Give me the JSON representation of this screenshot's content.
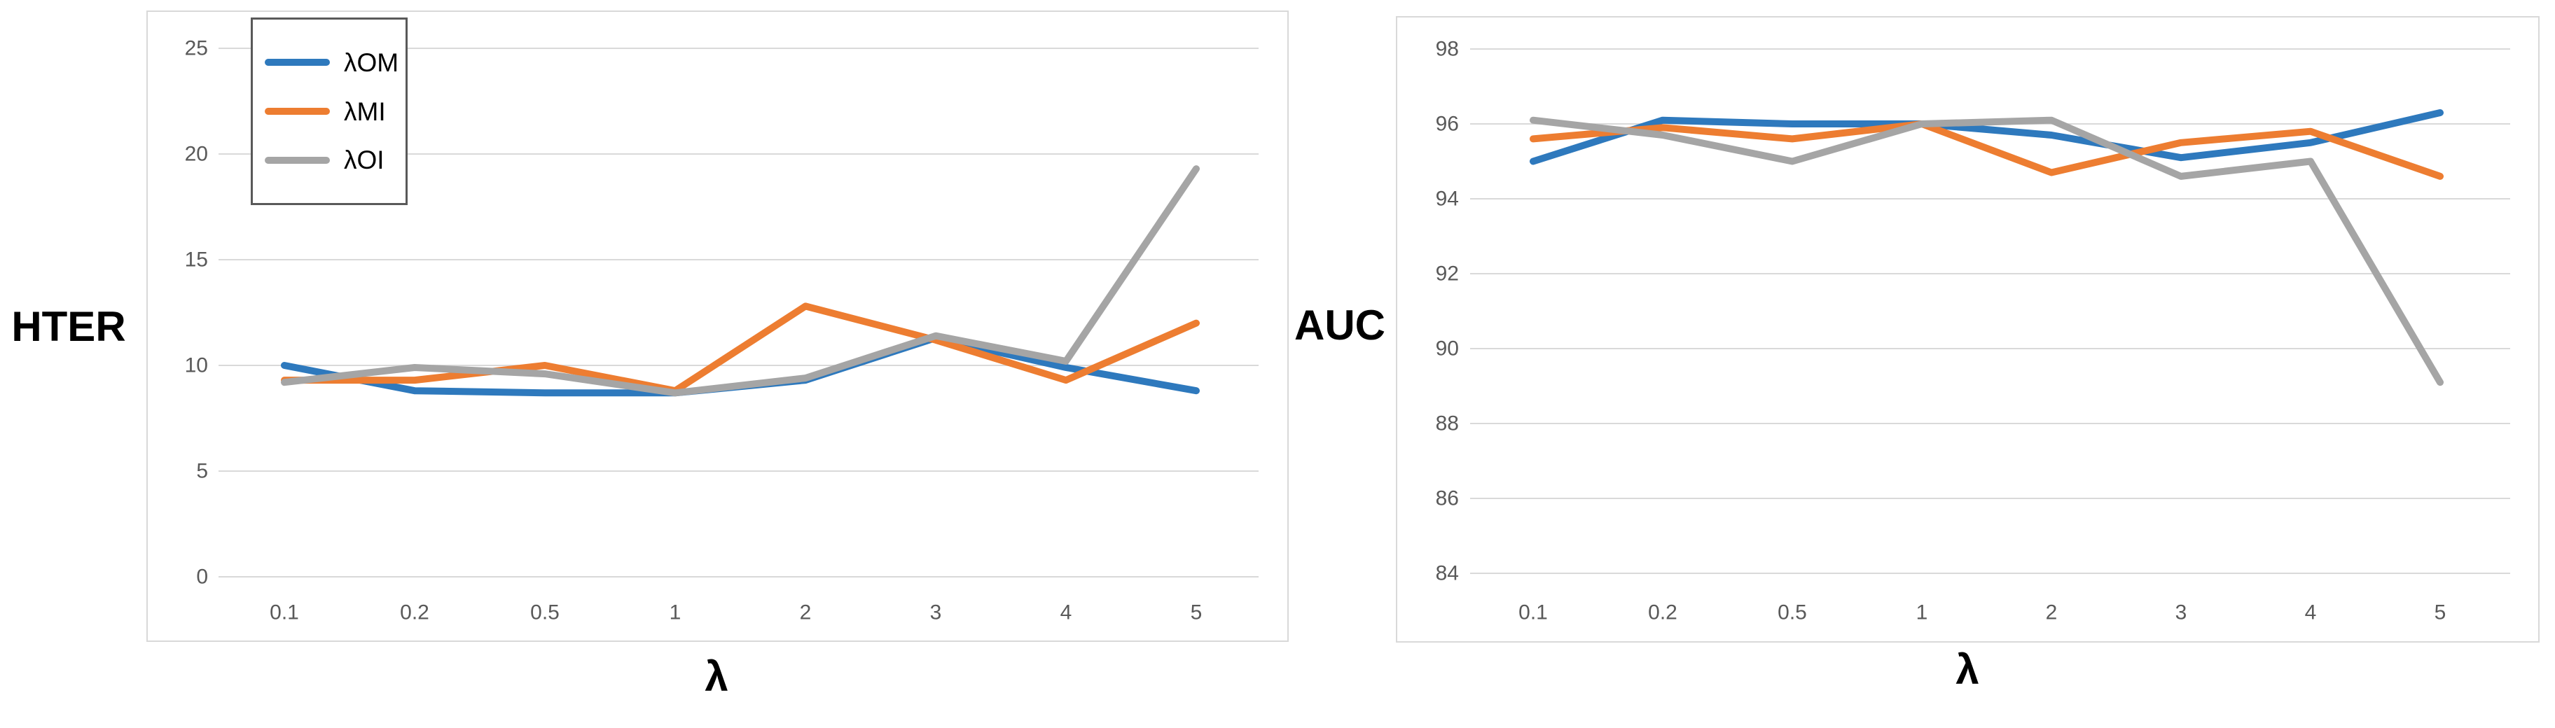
{
  "ui": {
    "background": "#ffffff",
    "grid_color": "#d9d9d9",
    "chart_border_color": "#d9d9d9",
    "tick_label_color": "#595959",
    "axis_title_color": "#000000",
    "legend_border_color": "#595959",
    "series_colors": {
      "blue": "#2e79bd",
      "orange": "#ed7d31",
      "gray": "#a5a5a5"
    }
  },
  "chart_data": [
    {
      "type": "line",
      "title": "",
      "ylabel": "HTER",
      "xlabel": "λ",
      "categories": [
        "0.1",
        "0.2",
        "0.5",
        "1",
        "2",
        "3",
        "4",
        "5"
      ],
      "yticks": [
        0,
        5,
        10,
        15,
        20,
        25
      ],
      "ylim": [
        0,
        25
      ],
      "grid": "horizontal",
      "legend_visible": true,
      "legend_position": "top-left-inside",
      "legend_entries": [
        "λOM",
        "λMI",
        "λOI"
      ],
      "series": [
        {
          "name": "λOM",
          "color": "#2e79bd",
          "values": [
            10.0,
            8.8,
            8.7,
            8.7,
            9.3,
            11.3,
            9.9,
            8.8
          ]
        },
        {
          "name": "λMI",
          "color": "#ed7d31",
          "values": [
            9.3,
            9.3,
            10.0,
            8.8,
            12.8,
            11.2,
            9.3,
            12.0
          ]
        },
        {
          "name": "λOI",
          "color": "#a5a5a5",
          "values": [
            9.2,
            9.9,
            9.6,
            8.7,
            9.4,
            11.4,
            10.2,
            19.3
          ]
        }
      ]
    },
    {
      "type": "line",
      "title": "",
      "ylabel": "AUC",
      "xlabel": "λ",
      "categories": [
        "0.1",
        "0.2",
        "0.5",
        "1",
        "2",
        "3",
        "4",
        "5"
      ],
      "yticks": [
        84,
        86,
        88,
        90,
        92,
        94,
        96,
        98
      ],
      "ylim": [
        84,
        98
      ],
      "grid": "horizontal",
      "legend_visible": false,
      "legend_position": "none",
      "legend_entries": [],
      "series": [
        {
          "name": "λOM",
          "color": "#2e79bd",
          "values": [
            95.0,
            96.1,
            96.0,
            96.0,
            95.7,
            95.1,
            95.5,
            96.3
          ]
        },
        {
          "name": "λMI",
          "color": "#ed7d31",
          "values": [
            95.6,
            95.9,
            95.6,
            96.0,
            94.7,
            95.5,
            95.8,
            94.6
          ]
        },
        {
          "name": "λOI",
          "color": "#a5a5a5",
          "values": [
            96.1,
            95.7,
            95.0,
            96.0,
            96.1,
            94.6,
            95.0,
            89.1
          ]
        }
      ]
    }
  ]
}
